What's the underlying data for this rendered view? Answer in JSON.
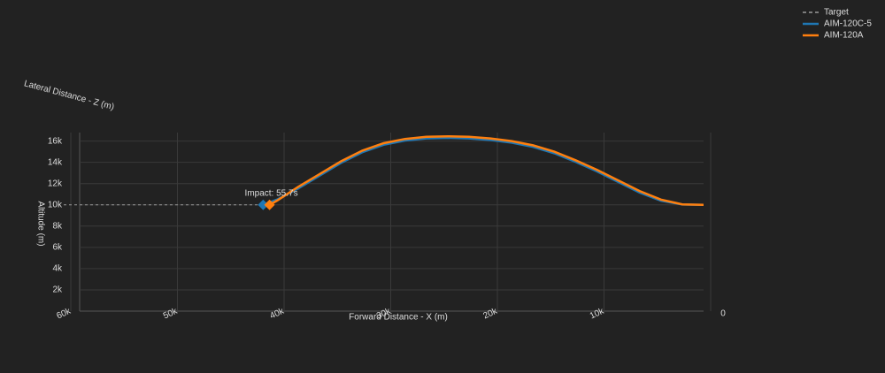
{
  "chart_data": {
    "type": "line",
    "xlabel": "Forward Distance - X (m)",
    "ylabel": "Altitude (m)",
    "zlabel": "Lateral Distance - Z (m)",
    "annotation": "Impact: 55.7s",
    "xlim": [
      60000,
      0
    ],
    "xticks": [
      {
        "value": 60000,
        "label": "60k"
      },
      {
        "value": 50000,
        "label": "50k"
      },
      {
        "value": 40000,
        "label": "40k"
      },
      {
        "value": 30000,
        "label": "30k"
      },
      {
        "value": 20000,
        "label": "20k"
      },
      {
        "value": 10000,
        "label": "10k"
      },
      0
    ],
    "ylim": [
      0,
      16800
    ],
    "yticks": [
      {
        "value": 2000,
        "label": "2k"
      },
      {
        "value": 4000,
        "label": "4k"
      },
      {
        "value": 6000,
        "label": "6k"
      },
      {
        "value": 8000,
        "label": "8k"
      },
      {
        "value": 10000,
        "label": "10k"
      },
      {
        "value": 12000,
        "label": "12k"
      },
      {
        "value": 14000,
        "label": "14k"
      },
      {
        "value": 16000,
        "label": "16k"
      }
    ],
    "grid": true,
    "legend": "top-right",
    "series": [
      {
        "name": "Target",
        "color": "#999999",
        "dash": true,
        "x": [
          60000,
          41300
        ],
        "values": [
          10000,
          10000
        ]
      },
      {
        "name": "AIM-120C-5",
        "color": "#1f77b4",
        "dash": false,
        "x": [
          0,
          2000,
          4000,
          6000,
          8000,
          10000,
          12000,
          14000,
          16000,
          18000,
          20000,
          22000,
          24000,
          26000,
          28000,
          30000,
          32000,
          34000,
          36000,
          38000,
          40000,
          41300
        ],
        "values": [
          10000,
          10030,
          10400,
          11150,
          12150,
          13150,
          14050,
          14850,
          15450,
          15850,
          16100,
          16250,
          16300,
          16250,
          16050,
          15650,
          14950,
          13950,
          12750,
          11550,
          10500,
          10000
        ]
      },
      {
        "name": "AIM-120A",
        "color": "#ff7f0e",
        "dash": false,
        "x": [
          0,
          2000,
          4000,
          6000,
          8000,
          10000,
          12000,
          14000,
          16000,
          18000,
          20000,
          22000,
          24000,
          26000,
          28000,
          30000,
          32000,
          34000,
          36000,
          38000,
          40000,
          40700
        ],
        "values": [
          10000,
          10050,
          10500,
          11300,
          12300,
          13300,
          14200,
          15000,
          15600,
          16000,
          16250,
          16400,
          16450,
          16400,
          16200,
          15800,
          15100,
          14100,
          12900,
          11700,
          10400,
          10000
        ]
      }
    ]
  }
}
